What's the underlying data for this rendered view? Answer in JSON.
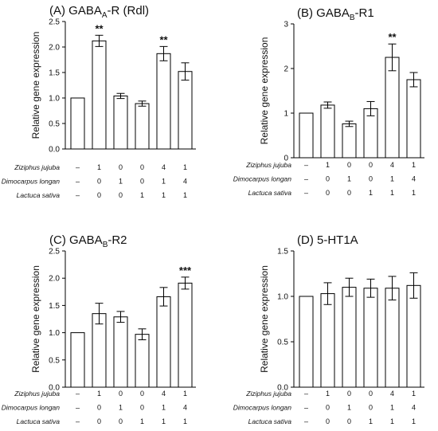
{
  "conditions": {
    "row_labels": [
      "Ziziphus jujuba",
      "Dimocarpus longan",
      "Lactuca sativa"
    ],
    "matrix": [
      [
        "–",
        "1",
        "0",
        "0",
        "4",
        "1"
      ],
      [
        "–",
        "0",
        "1",
        "0",
        "1",
        "4"
      ],
      [
        "–",
        "0",
        "0",
        "1",
        "1",
        "1"
      ]
    ]
  },
  "chart_data": [
    {
      "type": "bar",
      "title": "(A) GABA",
      "title_sub": "A",
      "title_suffix": "-R (Rdl)",
      "ylabel": "Relative gene expression",
      "ylim": [
        0,
        2.5
      ],
      "yticks": [
        "0.0",
        "0.5",
        "1.0",
        "1.5",
        "2.0",
        "2.5"
      ],
      "values": [
        1.0,
        2.12,
        1.04,
        0.89,
        1.87,
        1.52
      ],
      "errors": [
        0,
        0.11,
        0.05,
        0.05,
        0.14,
        0.17
      ],
      "significance": [
        "",
        "**",
        "",
        "",
        "**",
        ""
      ]
    },
    {
      "type": "bar",
      "title": "(B) GABA",
      "title_sub": "B",
      "title_suffix": "-R1",
      "ylabel": "Relative gene expression",
      "ylim": [
        0,
        3
      ],
      "yticks": [
        "0",
        "1",
        "2",
        "3"
      ],
      "values": [
        1.0,
        1.18,
        0.76,
        1.1,
        2.25,
        1.75
      ],
      "errors": [
        0,
        0.07,
        0.06,
        0.16,
        0.3,
        0.16
      ],
      "significance": [
        "",
        "",
        "",
        "",
        "**",
        ""
      ]
    },
    {
      "type": "bar",
      "title": "(C) GABA",
      "title_sub": "B",
      "title_suffix": "-R2",
      "ylabel": "Relative gene expression",
      "ylim": [
        0,
        2.5
      ],
      "yticks": [
        "0.0",
        "0.5",
        "1.0",
        "1.5",
        "2.0",
        "2.5"
      ],
      "values": [
        1.0,
        1.35,
        1.29,
        0.97,
        1.66,
        1.91
      ],
      "errors": [
        0,
        0.19,
        0.1,
        0.1,
        0.17,
        0.11
      ],
      "significance": [
        "",
        "",
        "",
        "",
        "",
        "***"
      ]
    },
    {
      "type": "bar",
      "title": "(D) 5-HT1A",
      "title_sub": "",
      "title_suffix": "",
      "ylabel": "Relative gene expression",
      "ylim": [
        0,
        1.5
      ],
      "yticks": [
        "0.0",
        "0.5",
        "1.0",
        "1.5"
      ],
      "values": [
        1.0,
        1.03,
        1.1,
        1.09,
        1.09,
        1.12
      ],
      "errors": [
        0,
        0.12,
        0.1,
        0.1,
        0.13,
        0.14
      ],
      "significance": [
        "",
        "",
        "",
        "",
        "",
        ""
      ]
    }
  ]
}
